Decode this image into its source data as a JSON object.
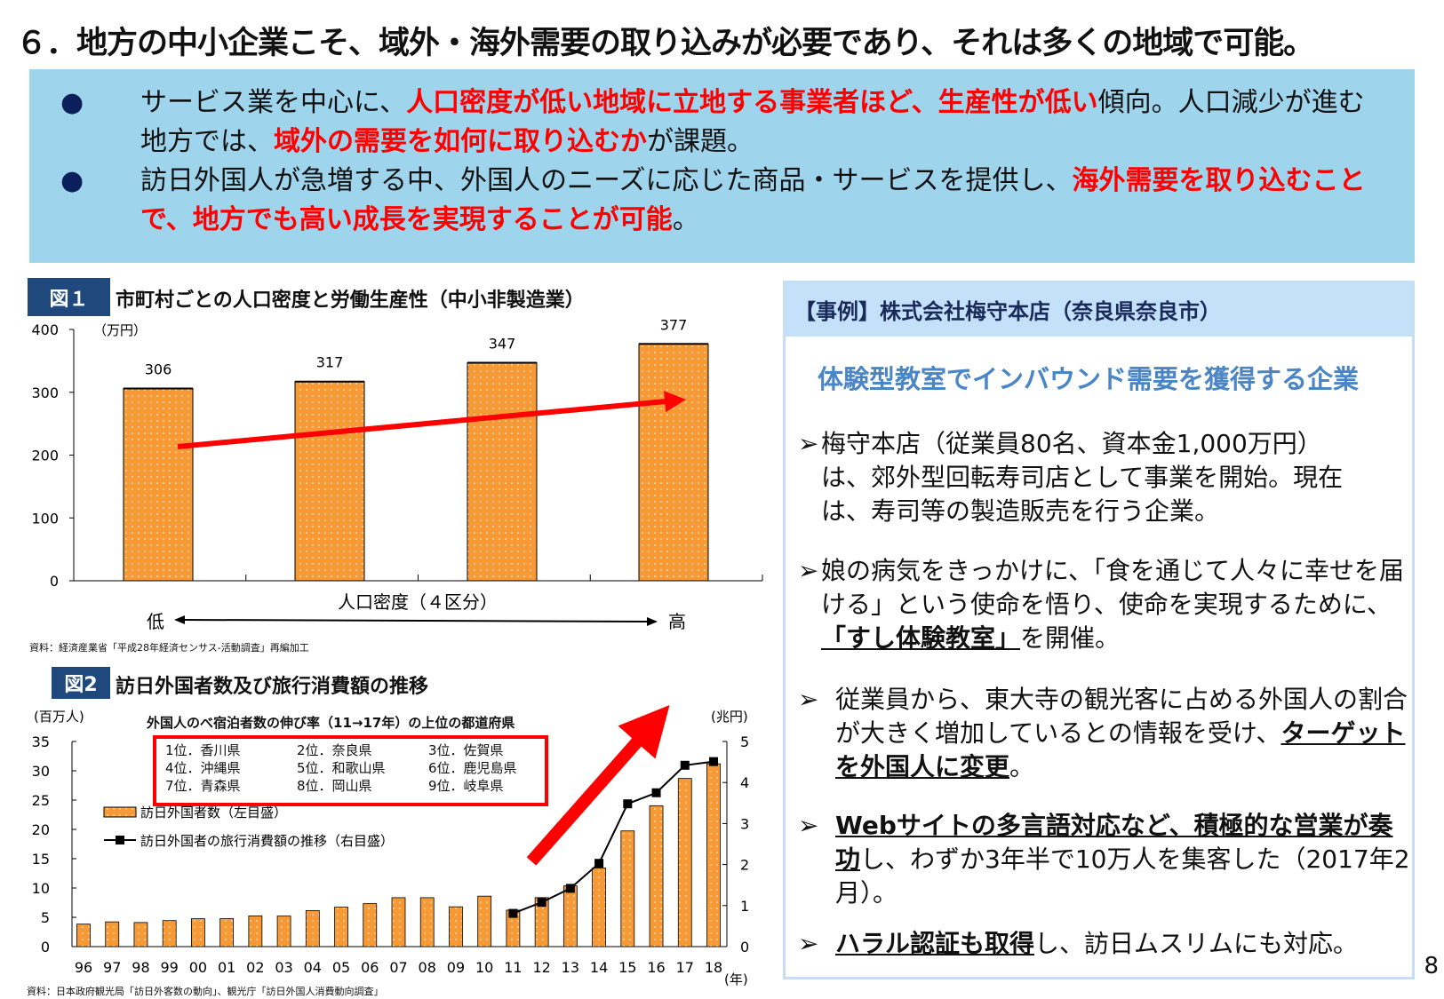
{
  "title": "６．地方の中小企業こそ、域外・海外需要の取り込みが必要であり、それは多くの地域で可能。",
  "summary": {
    "bullet_icon": "filled-circle",
    "bullets": [
      [
        {
          "t": "サービス業を中心に、"
        },
        {
          "t": "人口密度が低い地域に立地する事業者ほど、生産性が低い",
          "red": true
        },
        {
          "t": "傾向。人口減少が進む地方では、"
        },
        {
          "t": "域外の需要を如何に取り込むか",
          "red": true
        },
        {
          "t": "が課題。"
        }
      ],
      [
        {
          "t": "訪日外国人が急増する中、外国人のニーズに応じた商品・サービスを提供し、"
        },
        {
          "t": "海外需要を取り込むことで、地方でも高い成長を実現することが可能",
          "red": true
        },
        {
          "t": "。"
        }
      ]
    ]
  },
  "fig1": {
    "label": "図１",
    "title": "市町村ごとの人口密度と労働生産性（中小非製造業）",
    "source": "資料：経済産業省「平成28年経済センサス-活動調査」再編加工",
    "density_low": "低",
    "density_high": "高"
  },
  "fig2": {
    "label": "図2",
    "title": "訪日外国者数及び旅行消費額の推移",
    "box_title": "外国人のべ宿泊者数の伸び率（11→17年）の上位の都道府県",
    "ranks": [
      "1位．香川県",
      "2位．奈良県",
      "3位．佐賀県",
      "4位．沖縄県",
      "5位．和歌山県",
      "6位．鹿児島県",
      "7位．青森県",
      "8位．岡山県",
      "9位．岐阜県"
    ],
    "source": "資料：日本政府観光局「訪日外客数の動向」、観光庁「訪日外国人消費動向調査」"
  },
  "chart_data": [
    {
      "type": "bar",
      "categories": [
        "低",
        "",
        "",
        "高"
      ],
      "values": [
        306,
        317,
        347,
        377
      ],
      "ylabel": "（万円）",
      "xlabel": "人口密度（４区分）",
      "ylim": [
        0,
        400
      ],
      "yticks": [
        "0",
        "100",
        "200",
        "300",
        "400"
      ],
      "data_labels": [
        "306",
        "317",
        "347",
        "377"
      ],
      "bar_color": "#f79a36",
      "trend_arrow_color": "#ff0000",
      "grid": false
    },
    {
      "type": "bar+line",
      "categories": [
        "96",
        "97",
        "98",
        "99",
        "00",
        "01",
        "02",
        "03",
        "04",
        "05",
        "06",
        "07",
        "08",
        "09",
        "10",
        "11",
        "12",
        "13",
        "14",
        "15",
        "16",
        "17",
        "18"
      ],
      "xlabel": "(年)",
      "series": [
        {
          "name": "訪日外国者数（左目盛）",
          "type": "bar",
          "axis": "left",
          "values": [
            3.84,
            4.22,
            4.11,
            4.44,
            4.76,
            4.77,
            5.24,
            5.21,
            6.14,
            6.73,
            7.33,
            8.35,
            8.35,
            6.79,
            8.61,
            6.22,
            8.36,
            10.36,
            13.41,
            19.74,
            24.04,
            28.69,
            31.19
          ]
        },
        {
          "name": "訪日外国者の旅行消費額の推移（右目盛）",
          "type": "line",
          "axis": "right",
          "x": [
            "11",
            "12",
            "13",
            "14",
            "15",
            "16",
            "17",
            "18"
          ],
          "values": [
            0.81,
            1.08,
            1.42,
            2.03,
            3.48,
            3.75,
            4.42,
            4.51
          ]
        }
      ],
      "ylabel_left": "(百万人)",
      "ylim_left": [
        0,
        35
      ],
      "yticks_left": [
        "0",
        "5",
        "10",
        "15",
        "20",
        "25",
        "30",
        "35"
      ],
      "ylabel_right": "(兆円)",
      "ylim_right": [
        0,
        5
      ],
      "yticks_right": [
        "0",
        "1",
        "2",
        "3",
        "4",
        "5"
      ],
      "bar_color": "#f79a36",
      "line_color": "#000000",
      "arrow_color": "#ff0000",
      "grid": false
    }
  ],
  "panel": {
    "header": "【事例】株式会社梅守本店（奈良県奈良市）",
    "subtitle": "体験型教室でインバウンド需要を獲得する企業",
    "items": [
      [
        {
          "t": "梅守本店（従業員80名、資本金1,000万円）は、郊外型回転寿司店として事業を開始。現在は、寿司等の製造販売を行う企業。"
        }
      ],
      [
        {
          "t": "娘の病気をきっかけに、「食を通じて人々に幸せを届ける」という使命を悟り、使命を実現するために、"
        },
        {
          "t": "「すし体験教室」",
          "b": true
        },
        {
          "t": "を開催。"
        }
      ],
      [
        {
          "t": "従業員から、東大寺の観光客に占める外国人の割合が大きく増加しているとの情報を受け、"
        },
        {
          "t": "ターゲットを外国人に変更",
          "b": true
        },
        {
          "t": "。"
        }
      ],
      [
        {
          "t": "Webサイトの多言語対応など、積極的な営業が奏功",
          "b": true
        },
        {
          "t": "し、わずか3年半で10万人を集客した（2017年2月）。"
        }
      ],
      [
        {
          "t": "ハラル認証も取得",
          "b": true
        },
        {
          "t": "し、訪日ムスリムにも対応。"
        }
      ]
    ],
    "arrow_glyph": "➢"
  },
  "page_number": "8"
}
